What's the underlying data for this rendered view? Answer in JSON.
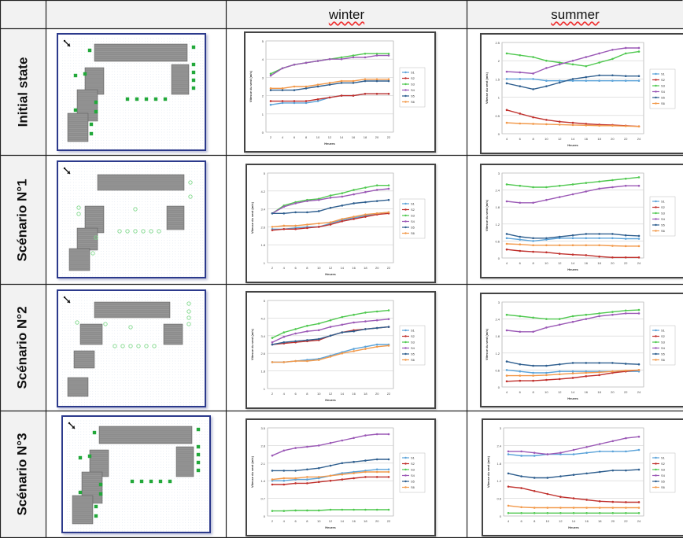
{
  "table": {
    "columns": [
      "",
      "",
      "winter",
      "summer"
    ],
    "rows": [
      "Initial state",
      "Scénario N°1",
      "Scénario N°2",
      "Scénario N°3"
    ]
  },
  "colors": {
    "s1": "#5ba3d9",
    "s2": "#c0302c",
    "s3": "#4fc84f",
    "s4": "#9b59b6",
    "s5": "#2f5f8f",
    "s6": "#f2994a",
    "building": "#8c8c8c",
    "tree": "#22a83a",
    "tree_light": "#7fd88a",
    "plan_border": "#2c3a8c"
  },
  "icons": [
    "wind-arrow-icon"
  ],
  "chart_axis": {
    "ylabel": "Vitesse du vent (m/s)",
    "xlabel": "Heures",
    "x_winter": [
      2,
      4,
      6,
      8,
      10,
      12,
      14,
      16,
      18,
      20,
      22
    ],
    "x_summer": [
      4,
      6,
      8,
      10,
      12,
      14,
      16,
      18,
      20,
      22,
      24
    ]
  },
  "chart_data": [
    {
      "id": "initial-winter",
      "type": "line",
      "ylim": [
        0,
        5
      ],
      "series": [
        {
          "name": "S1",
          "values": [
            1.5,
            1.6,
            1.6,
            1.6,
            1.7,
            1.9,
            2.0,
            2.0,
            2.1,
            2.1,
            2.1
          ]
        },
        {
          "name": "S2",
          "values": [
            1.7,
            1.7,
            1.7,
            1.7,
            1.8,
            1.9,
            2.0,
            2.0,
            2.1,
            2.1,
            2.1
          ]
        },
        {
          "name": "S3",
          "values": [
            3.2,
            3.5,
            3.7,
            3.8,
            3.9,
            4.0,
            4.1,
            4.2,
            4.3,
            4.3,
            4.3
          ]
        },
        {
          "name": "S4",
          "values": [
            3.1,
            3.5,
            3.7,
            3.8,
            3.9,
            4.0,
            4.0,
            4.1,
            4.1,
            4.2,
            4.2
          ]
        },
        {
          "name": "S5",
          "values": [
            2.3,
            2.3,
            2.3,
            2.4,
            2.5,
            2.6,
            2.7,
            2.7,
            2.8,
            2.8,
            2.8
          ]
        },
        {
          "name": "S6",
          "values": [
            2.4,
            2.4,
            2.5,
            2.5,
            2.6,
            2.7,
            2.8,
            2.8,
            2.9,
            2.9,
            2.9
          ]
        }
      ]
    },
    {
      "id": "initial-summer",
      "type": "line",
      "ylim": [
        0,
        2.5
      ],
      "series": [
        {
          "name": "S1",
          "values": [
            1.5,
            1.5,
            1.5,
            1.45,
            1.45,
            1.45,
            1.45,
            1.45,
            1.45,
            1.45,
            1.45
          ]
        },
        {
          "name": "S2",
          "values": [
            0.65,
            0.55,
            0.45,
            0.38,
            0.33,
            0.3,
            0.27,
            0.25,
            0.24,
            0.22,
            0.2
          ]
        },
        {
          "name": "S3",
          "values": [
            2.2,
            2.15,
            2.1,
            2.0,
            1.95,
            1.9,
            1.85,
            1.95,
            2.05,
            2.2,
            2.25
          ]
        },
        {
          "name": "S4",
          "values": [
            1.7,
            1.68,
            1.65,
            1.8,
            1.9,
            2.0,
            2.1,
            2.2,
            2.3,
            2.35,
            2.35
          ]
        },
        {
          "name": "S5",
          "values": [
            1.38,
            1.3,
            1.22,
            1.3,
            1.4,
            1.5,
            1.55,
            1.6,
            1.6,
            1.58,
            1.58
          ]
        },
        {
          "name": "S6",
          "values": [
            0.3,
            0.28,
            0.27,
            0.26,
            0.25,
            0.24,
            0.23,
            0.22,
            0.22,
            0.21,
            0.2
          ]
        }
      ]
    },
    {
      "id": "s1-winter",
      "type": "line",
      "ylim": [
        1,
        5
      ],
      "series": [
        {
          "name": "S1",
          "values": [
            2.5,
            2.5,
            2.55,
            2.6,
            2.6,
            2.75,
            2.9,
            3.0,
            3.1,
            3.2,
            3.25
          ]
        },
        {
          "name": "S2",
          "values": [
            2.45,
            2.5,
            2.5,
            2.55,
            2.6,
            2.7,
            2.85,
            2.95,
            3.05,
            3.15,
            3.2
          ]
        },
        {
          "name": "S3",
          "values": [
            3.2,
            3.55,
            3.7,
            3.8,
            3.85,
            4.0,
            4.1,
            4.25,
            4.35,
            4.45,
            4.45
          ]
        },
        {
          "name": "S4",
          "values": [
            3.2,
            3.5,
            3.65,
            3.75,
            3.8,
            3.9,
            3.95,
            4.05,
            4.15,
            4.25,
            4.3
          ]
        },
        {
          "name": "S5",
          "values": [
            3.2,
            3.2,
            3.25,
            3.25,
            3.3,
            3.45,
            3.55,
            3.65,
            3.7,
            3.75,
            3.8
          ]
        },
        {
          "name": "S6",
          "values": [
            2.6,
            2.65,
            2.65,
            2.7,
            2.75,
            2.8,
            2.95,
            3.05,
            3.15,
            3.2,
            3.25
          ]
        }
      ]
    },
    {
      "id": "s1-summer",
      "type": "line",
      "ylim": [
        0,
        3
      ],
      "series": [
        {
          "name": "S1",
          "values": [
            0.7,
            0.65,
            0.6,
            0.65,
            0.7,
            0.7,
            0.7,
            0.7,
            0.7,
            0.68,
            0.68
          ]
        },
        {
          "name": "S2",
          "values": [
            0.3,
            0.25,
            0.22,
            0.2,
            0.15,
            0.12,
            0.1,
            0.05,
            0.02,
            0.02,
            0.02
          ]
        },
        {
          "name": "S3",
          "values": [
            2.6,
            2.55,
            2.5,
            2.5,
            2.55,
            2.6,
            2.65,
            2.7,
            2.75,
            2.8,
            2.85
          ]
        },
        {
          "name": "S4",
          "values": [
            2.0,
            1.95,
            1.95,
            2.05,
            2.15,
            2.25,
            2.35,
            2.45,
            2.5,
            2.55,
            2.55
          ]
        },
        {
          "name": "S5",
          "values": [
            0.85,
            0.75,
            0.7,
            0.7,
            0.75,
            0.8,
            0.85,
            0.85,
            0.85,
            0.8,
            0.78
          ]
        },
        {
          "name": "S6",
          "values": [
            0.5,
            0.48,
            0.45,
            0.45,
            0.45,
            0.45,
            0.45,
            0.45,
            0.43,
            0.42,
            0.42
          ]
        }
      ]
    },
    {
      "id": "s2-winter",
      "type": "line",
      "ylim": [
        1,
        5
      ],
      "series": [
        {
          "name": "S1",
          "values": [
            2.2,
            2.2,
            2.25,
            2.3,
            2.35,
            2.5,
            2.65,
            2.8,
            2.9,
            3.0,
            3.0
          ]
        },
        {
          "name": "S2",
          "values": [
            3.0,
            3.05,
            3.1,
            3.15,
            3.2,
            3.4,
            3.55,
            3.65,
            3.7,
            3.75,
            3.8
          ]
        },
        {
          "name": "S3",
          "values": [
            3.3,
            3.55,
            3.7,
            3.85,
            3.95,
            4.1,
            4.25,
            4.35,
            4.45,
            4.5,
            4.55
          ]
        },
        {
          "name": "S4",
          "values": [
            3.1,
            3.35,
            3.5,
            3.6,
            3.65,
            3.8,
            3.9,
            4.0,
            4.05,
            4.1,
            4.15
          ]
        },
        {
          "name": "S5",
          "values": [
            3.0,
            3.1,
            3.15,
            3.2,
            3.25,
            3.4,
            3.55,
            3.6,
            3.7,
            3.75,
            3.8
          ]
        },
        {
          "name": "S6",
          "values": [
            2.2,
            2.2,
            2.25,
            2.25,
            2.3,
            2.45,
            2.6,
            2.7,
            2.8,
            2.9,
            2.95
          ]
        }
      ]
    },
    {
      "id": "s2-summer",
      "type": "line",
      "ylim": [
        0,
        3
      ],
      "series": [
        {
          "name": "S1",
          "values": [
            0.6,
            0.55,
            0.5,
            0.5,
            0.55,
            0.55,
            0.55,
            0.55,
            0.55,
            0.55,
            0.55
          ]
        },
        {
          "name": "S2",
          "values": [
            0.2,
            0.22,
            0.22,
            0.25,
            0.28,
            0.32,
            0.38,
            0.42,
            0.5,
            0.55,
            0.6
          ]
        },
        {
          "name": "S3",
          "values": [
            2.55,
            2.5,
            2.45,
            2.4,
            2.4,
            2.5,
            2.55,
            2.6,
            2.65,
            2.7,
            2.72
          ]
        },
        {
          "name": "S4",
          "values": [
            2.0,
            1.95,
            1.95,
            2.1,
            2.2,
            2.3,
            2.4,
            2.5,
            2.55,
            2.6,
            2.6
          ]
        },
        {
          "name": "S5",
          "values": [
            0.9,
            0.8,
            0.75,
            0.75,
            0.8,
            0.85,
            0.85,
            0.85,
            0.85,
            0.82,
            0.8
          ]
        },
        {
          "name": "S6",
          "values": [
            0.4,
            0.4,
            0.4,
            0.42,
            0.45,
            0.48,
            0.5,
            0.52,
            0.55,
            0.58,
            0.6
          ]
        }
      ]
    },
    {
      "id": "s3-winter",
      "type": "line",
      "ylim": [
        0,
        3.5
      ],
      "series": [
        {
          "name": "S1",
          "values": [
            1.4,
            1.4,
            1.45,
            1.45,
            1.5,
            1.6,
            1.7,
            1.75,
            1.8,
            1.85,
            1.85
          ]
        },
        {
          "name": "S2",
          "values": [
            1.25,
            1.25,
            1.3,
            1.3,
            1.35,
            1.4,
            1.45,
            1.5,
            1.55,
            1.55,
            1.55
          ]
        },
        {
          "name": "S3",
          "values": [
            0.2,
            0.2,
            0.22,
            0.22,
            0.22,
            0.25,
            0.25,
            0.25,
            0.25,
            0.25,
            0.25
          ]
        },
        {
          "name": "S4",
          "values": [
            2.4,
            2.6,
            2.7,
            2.75,
            2.8,
            2.9,
            3.0,
            3.1,
            3.2,
            3.25,
            3.25
          ]
        },
        {
          "name": "S5",
          "values": [
            1.8,
            1.8,
            1.8,
            1.85,
            1.9,
            2.0,
            2.1,
            2.15,
            2.2,
            2.25,
            2.25
          ]
        },
        {
          "name": "S6",
          "values": [
            1.45,
            1.5,
            1.5,
            1.55,
            1.55,
            1.6,
            1.65,
            1.7,
            1.75,
            1.75,
            1.75
          ]
        }
      ]
    },
    {
      "id": "s3-summer",
      "type": "line",
      "ylim": [
        0,
        3
      ],
      "series": [
        {
          "name": "S1",
          "values": [
            2.1,
            2.05,
            2.05,
            2.1,
            2.1,
            2.1,
            2.15,
            2.2,
            2.2,
            2.2,
            2.25
          ]
        },
        {
          "name": "S2",
          "values": [
            1.0,
            0.95,
            0.85,
            0.75,
            0.65,
            0.6,
            0.55,
            0.5,
            0.48,
            0.47,
            0.47
          ]
        },
        {
          "name": "S3",
          "values": [
            0.1,
            0.1,
            0.1,
            0.1,
            0.1,
            0.1,
            0.1,
            0.1,
            0.1,
            0.1,
            0.1
          ]
        },
        {
          "name": "S4",
          "values": [
            2.2,
            2.2,
            2.15,
            2.1,
            2.15,
            2.25,
            2.35,
            2.45,
            2.55,
            2.65,
            2.7
          ]
        },
        {
          "name": "S5",
          "values": [
            1.45,
            1.35,
            1.3,
            1.3,
            1.35,
            1.4,
            1.45,
            1.5,
            1.55,
            1.55,
            1.58
          ]
        },
        {
          "name": "S6",
          "values": [
            0.35,
            0.3,
            0.28,
            0.28,
            0.28,
            0.28,
            0.28,
            0.28,
            0.28,
            0.28,
            0.28
          ]
        }
      ]
    }
  ]
}
